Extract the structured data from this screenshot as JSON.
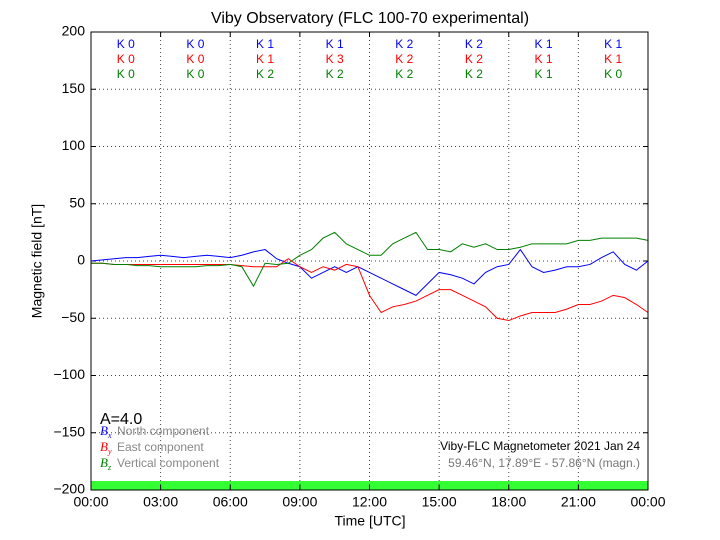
{
  "chart_data": {
    "type": "line",
    "title": "Viby Observatory (FLC 100-70 experimental)",
    "xlabel": "Time [UTC]",
    "ylabel": "Magnetic field [nT]",
    "xlim": [
      0,
      24
    ],
    "xticks": [
      {
        "value": 0,
        "label": "00:00"
      },
      {
        "value": 3,
        "label": "03:00"
      },
      {
        "value": 6,
        "label": "06:00"
      },
      {
        "value": 9,
        "label": "09:00"
      },
      {
        "value": 12,
        "label": "12:00"
      },
      {
        "value": 15,
        "label": "15:00"
      },
      {
        "value": 18,
        "label": "18:00"
      },
      {
        "value": 21,
        "label": "21:00"
      },
      {
        "value": 24,
        "label": "00:00"
      }
    ],
    "ylim": [
      -200,
      200
    ],
    "yticks": [
      {
        "value": -200,
        "label": "−200"
      },
      {
        "value": -150,
        "label": "−150"
      },
      {
        "value": -100,
        "label": "−100"
      },
      {
        "value": -50,
        "label": "−50"
      },
      0,
      50,
      100,
      150,
      200
    ],
    "grid": true,
    "x": [
      0,
      0.5,
      1,
      1.5,
      2,
      2.5,
      3,
      3.5,
      4,
      4.5,
      5,
      5.5,
      6,
      6.5,
      7,
      7.5,
      8,
      8.5,
      9,
      9.5,
      10,
      10.5,
      11,
      11.5,
      12,
      12.5,
      13,
      13.5,
      14,
      14.5,
      15,
      15.5,
      16,
      16.5,
      17,
      17.5,
      18,
      18.5,
      19,
      19.5,
      20,
      20.5,
      21,
      21.5,
      22,
      22.5,
      23,
      23.5,
      24
    ],
    "series": [
      {
        "name": "North component",
        "symbol": "B",
        "subscript": "x",
        "color": "#0000ff",
        "values": [
          0,
          1,
          2,
          3,
          3,
          4,
          5,
          4,
          3,
          4,
          5,
          4,
          3,
          5,
          8,
          10,
          2,
          -2,
          -5,
          -15,
          -10,
          -5,
          -10,
          -5,
          -10,
          -15,
          -20,
          -25,
          -30,
          -20,
          -10,
          -12,
          -15,
          -20,
          -10,
          -5,
          -3,
          10,
          -5,
          -10,
          -8,
          -5,
          -5,
          -3,
          3,
          8,
          -3,
          -8,
          0
        ]
      },
      {
        "name": "East component",
        "symbol": "B",
        "subscript": "y",
        "color": "#ff0000",
        "values": [
          -2,
          -2,
          -3,
          -3,
          -3,
          -3,
          -3,
          -3,
          -3,
          -3,
          -3,
          -3,
          -3,
          -4,
          -5,
          -5,
          -5,
          2,
          -5,
          -10,
          -5,
          -8,
          -3,
          -5,
          -30,
          -45,
          -40,
          -38,
          -35,
          -30,
          -25,
          -25,
          -30,
          -35,
          -40,
          -50,
          -52,
          -48,
          -45,
          -45,
          -45,
          -42,
          -38,
          -38,
          -35,
          -30,
          -32,
          -38,
          -45
        ]
      },
      {
        "name": "Vertical component",
        "symbol": "B",
        "subscript": "z",
        "color": "#008000",
        "values": [
          -2,
          -2,
          -3,
          -3,
          -4,
          -4,
          -5,
          -5,
          -5,
          -5,
          -4,
          -4,
          -3,
          -5,
          -22,
          -2,
          -3,
          -2,
          5,
          10,
          20,
          25,
          15,
          10,
          5,
          5,
          15,
          20,
          25,
          10,
          10,
          8,
          15,
          12,
          15,
          10,
          10,
          12,
          15,
          15,
          15,
          15,
          18,
          18,
          20,
          20,
          20,
          20,
          18
        ]
      }
    ],
    "k_index": [
      {
        "color": "#0000ff",
        "labels": [
          "K 0",
          "K 0",
          "K 1",
          "K 1",
          "K 2",
          "K 2",
          "K 1",
          "K 1"
        ]
      },
      {
        "color": "#ff0000",
        "labels": [
          "K 0",
          "K 0",
          "K 1",
          "K 3",
          "K 2",
          "K 2",
          "K 1",
          "K 1"
        ]
      },
      {
        "color": "#008000",
        "labels": [
          "K 0",
          "K 0",
          "K 2",
          "K 2",
          "K 2",
          "K 2",
          "K 1",
          "K 0"
        ]
      }
    ],
    "annotations": {
      "a_index": "A=4.0",
      "station": "Viby-FLC Magnetometer 2021 Jan 24",
      "location": "59.46°N, 17.89°E - 57.86°N (magn.)"
    }
  }
}
